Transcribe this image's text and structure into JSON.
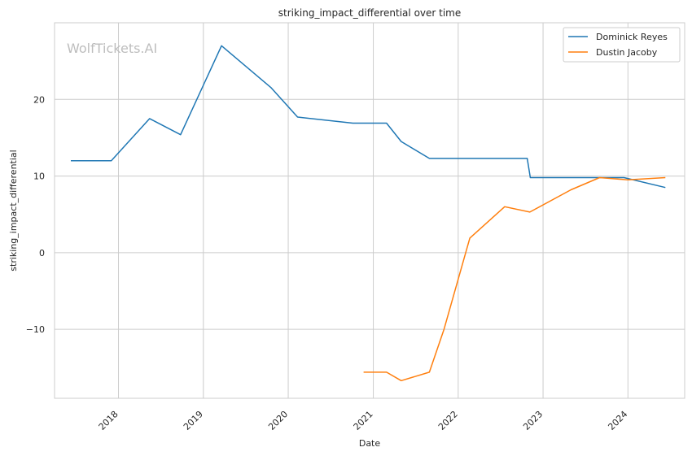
{
  "chart_data": {
    "type": "line",
    "title": "striking_impact_differential over time",
    "xlabel": "Date",
    "ylabel": "striking_impact_differential",
    "watermark": "WolfTickets.AI",
    "x_tick_labels": [
      "2018",
      "2019",
      "2020",
      "2021",
      "2022",
      "2023",
      "2024"
    ],
    "y_tick_values": [
      -10,
      0,
      10,
      20
    ],
    "y_tick_labels": [
      "−10",
      "0",
      "10",
      "20"
    ],
    "xlim": [
      "2017-04-01",
      "2024-09-01"
    ],
    "ylim": [
      -19,
      30
    ],
    "grid": true,
    "legend_position": "top-right",
    "series": [
      {
        "name": "Dominick Reyes",
        "color": "#1f77b4",
        "points": [
          [
            "2017-06-10",
            12.0
          ],
          [
            "2017-12-01",
            12.0
          ],
          [
            "2018-05-15",
            17.5
          ],
          [
            "2018-09-25",
            15.4
          ],
          [
            "2019-03-20",
            27.0
          ],
          [
            "2019-10-20",
            21.5
          ],
          [
            "2020-02-10",
            17.7
          ],
          [
            "2020-10-05",
            16.9
          ],
          [
            "2021-02-27",
            16.9
          ],
          [
            "2021-05-01",
            14.5
          ],
          [
            "2021-08-30",
            12.3
          ],
          [
            "2022-10-25",
            12.3
          ],
          [
            "2022-11-07",
            9.8
          ],
          [
            "2023-12-15",
            9.8
          ],
          [
            "2024-06-10",
            8.5
          ]
        ]
      },
      {
        "name": "Dustin Jacoby",
        "color": "#ff7f0e",
        "points": [
          [
            "2020-11-20",
            -15.6
          ],
          [
            "2021-02-27",
            -15.6
          ],
          [
            "2021-05-01",
            -16.7
          ],
          [
            "2021-08-30",
            -15.6
          ],
          [
            "2021-11-01",
            -10.0
          ],
          [
            "2022-02-20",
            1.9
          ],
          [
            "2022-07-20",
            6.0
          ],
          [
            "2022-11-05",
            5.3
          ],
          [
            "2023-05-01",
            8.2
          ],
          [
            "2023-09-01",
            9.8
          ],
          [
            "2024-01-01",
            9.5
          ],
          [
            "2024-06-10",
            9.8
          ]
        ]
      }
    ]
  }
}
